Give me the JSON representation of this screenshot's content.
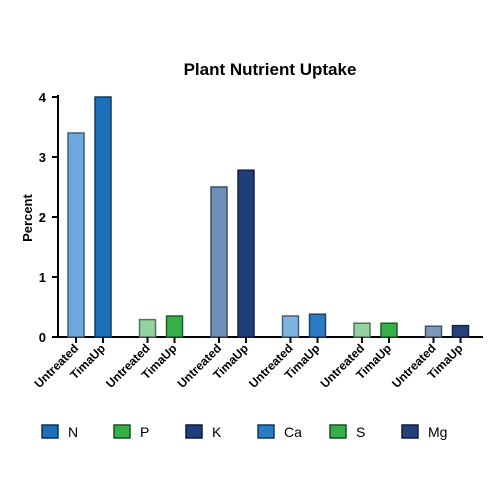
{
  "chart_data": {
    "type": "bar",
    "title": "Plant Nutrient Uptake",
    "ylabel": "Percent",
    "xlabel": "",
    "ylim": [
      0,
      4
    ],
    "yticks": [
      "0",
      "1",
      "2",
      "3",
      "4"
    ],
    "grid": false,
    "legend_position": "bottom",
    "groups": [
      {
        "nutrient": "N",
        "bars": [
          {
            "label": "Untreated",
            "value": 3.4,
            "color": "#6fa8dc"
          },
          {
            "label": "TimaUp",
            "value": 4.0,
            "color": "#1c6fb8"
          }
        ]
      },
      {
        "nutrient": "P",
        "bars": [
          {
            "label": "Untreated",
            "value": 0.29,
            "color": "#93d3a2"
          },
          {
            "label": "TimaUp",
            "value": 0.35,
            "color": "#35b04a"
          }
        ]
      },
      {
        "nutrient": "K",
        "bars": [
          {
            "label": "Untreated",
            "value": 2.5,
            "color": "#6e8fb8"
          },
          {
            "label": "TimaUp",
            "value": 2.78,
            "color": "#1f3d7a"
          }
        ]
      },
      {
        "nutrient": "Ca",
        "bars": [
          {
            "label": "Untreated",
            "value": 0.35,
            "color": "#80b3e0"
          },
          {
            "label": "TimaUp",
            "value": 0.38,
            "color": "#2a7ac4"
          }
        ]
      },
      {
        "nutrient": "S",
        "bars": [
          {
            "label": "Untreated",
            "value": 0.23,
            "color": "#93d3a2"
          },
          {
            "label": "TimaUp",
            "value": 0.23,
            "color": "#35b04a"
          }
        ]
      },
      {
        "nutrient": "Mg",
        "bars": [
          {
            "label": "Untreated",
            "value": 0.18,
            "color": "#7f97bb"
          },
          {
            "label": "TimaUp",
            "value": 0.19,
            "color": "#23427d"
          }
        ]
      }
    ],
    "legend": [
      {
        "label": "N",
        "color": "#1c6fb8"
      },
      {
        "label": "P",
        "color": "#35b04a"
      },
      {
        "label": "K",
        "color": "#1f3d7a"
      },
      {
        "label": "Ca",
        "color": "#2a7ac4"
      },
      {
        "label": "S",
        "color": "#35b04a"
      },
      {
        "label": "Mg",
        "color": "#23427d"
      }
    ]
  }
}
